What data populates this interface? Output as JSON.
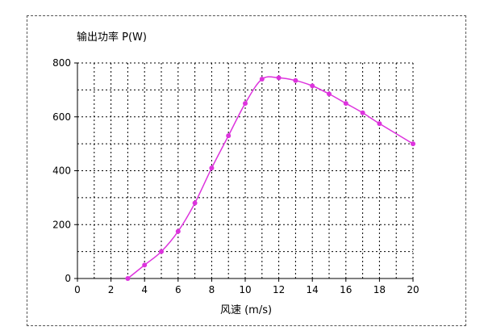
{
  "chart_data": {
    "type": "line",
    "ylabel": "输出功率 P(W)",
    "xlabel": "风速 (m/s)",
    "xlim": [
      0,
      20
    ],
    "ylim": [
      0,
      800
    ],
    "x_ticks": [
      0,
      2,
      4,
      6,
      8,
      10,
      12,
      14,
      16,
      18,
      20
    ],
    "y_ticks": [
      0,
      200,
      400,
      600,
      800
    ],
    "grid": true,
    "grid_style": "dotted",
    "legend": "none",
    "series": [
      {
        "x": [
          3,
          4,
          5,
          6,
          7,
          8,
          9,
          10,
          11,
          12,
          13,
          14,
          15,
          16,
          17,
          18,
          20
        ],
        "values": [
          0,
          50,
          100,
          175,
          280,
          410,
          530,
          650,
          740,
          745,
          735,
          715,
          685,
          650,
          615,
          575,
          500
        ],
        "color": "#dd33dd"
      }
    ]
  }
}
